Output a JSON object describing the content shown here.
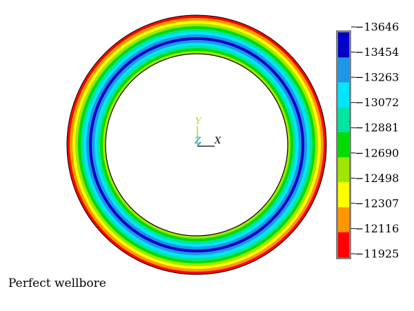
{
  "caption": "Perfect wellbore",
  "triad": {
    "x_label": "X",
    "y_label": "Y",
    "z_label": "Z"
  },
  "colorbar": {
    "tick_labels": [
      "−13646",
      "−13454",
      "−13263",
      "−13072",
      "−12881",
      "−12690",
      "−12498",
      "−12307",
      "−12116",
      "−11925"
    ],
    "colors_top_to_bottom": [
      "#0000c8",
      "#1e96e6",
      "#00e6ff",
      "#00e6a0",
      "#00dc00",
      "#a0e600",
      "#ffff00",
      "#ff9600",
      "#ff0000"
    ],
    "frame_color": "#808080"
  },
  "rings_outer_to_inner": [
    "#ff0000",
    "#ff9600",
    "#ffff00",
    "#a0e600",
    "#00dc00",
    "#00e6a0",
    "#00e6ff",
    "#1e96e6",
    "#0000c8",
    "#1e96e6",
    "#00e6ff",
    "#00e6a0",
    "#00dc00",
    "#a0e600"
  ]
}
